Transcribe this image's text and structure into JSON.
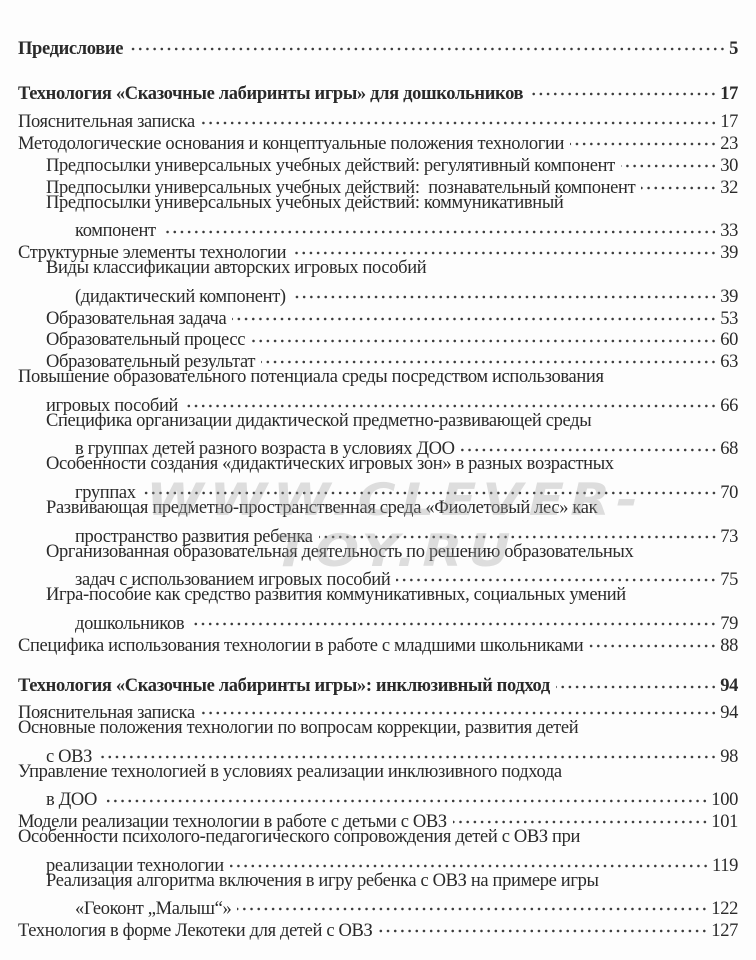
{
  "watermark": "WWW.CLEVER-TOY.RU",
  "preface": {
    "lines": [
      "Предисловие"
    ],
    "page": "5"
  },
  "sections": [
    {
      "heading": {
        "lines": [
          "Технология «Сказочные лабиринты игры» для дошкольников"
        ],
        "page": "17"
      },
      "entries": [
        {
          "level": 0,
          "lines": [
            "Пояснительная записка"
          ],
          "page": "17"
        },
        {
          "level": 0,
          "lines": [
            "Методологические основания и концептуальные положения технологии"
          ],
          "page": "23"
        },
        {
          "level": 1,
          "lines": [
            "Предпосылки универсальных учебных действий: регулятивный компонент"
          ],
          "page": "30"
        },
        {
          "level": 1,
          "lines": [
            "Предпосылки универсальных учебных действий:  познавательный компонент"
          ],
          "page": "32"
        },
        {
          "level": 1,
          "lines": [
            "Предпосылки универсальных учебных действий: коммуникативный",
            "компонент"
          ],
          "page": "33"
        },
        {
          "level": 0,
          "lines": [
            "Структурные элементы технологии"
          ],
          "page": "39"
        },
        {
          "level": 1,
          "lines": [
            "Виды классификации авторских игровых пособий",
            "(дидактический компонент)"
          ],
          "page": "39"
        },
        {
          "level": 1,
          "lines": [
            "Образовательная задача"
          ],
          "page": "53"
        },
        {
          "level": 1,
          "lines": [
            "Образовательный процесс"
          ],
          "page": "60"
        },
        {
          "level": 1,
          "lines": [
            "Образовательный результат"
          ],
          "page": "63"
        },
        {
          "level": 0,
          "lines": [
            "Повышение образовательного потенциала среды посредством использования",
            "игровых пособий"
          ],
          "page": "66"
        },
        {
          "level": 1,
          "lines": [
            "Специфика организации дидактической предметно-развивающей среды",
            "в группах детей разного возраста в условиях ДОО"
          ],
          "page": "68"
        },
        {
          "level": 1,
          "lines": [
            "Особенности создания «дидактических игровых зон» в разных возрастных",
            "группах"
          ],
          "page": "70"
        },
        {
          "level": 1,
          "lines": [
            "Развивающая предметно-пространственная среда «Фиолетовый лес» как",
            "пространство развития ребенка"
          ],
          "page": "73"
        },
        {
          "level": 1,
          "lines": [
            "Организованная образовательная деятельность по решению образовательных",
            "задач с использованием игровых пособий"
          ],
          "page": "75"
        },
        {
          "level": 1,
          "lines": [
            "Игра-пособие как средство развития коммуникативных, социальных умений",
            "дошкольников"
          ],
          "page": "79"
        },
        {
          "level": 0,
          "lines": [
            "Специфика использования технологии в работе с младшими школьниками"
          ],
          "page": "88"
        }
      ]
    },
    {
      "heading": {
        "lines": [
          "Технология «Сказочные лабиринты игры»: инклюзивный подход"
        ],
        "page": "94"
      },
      "entries": [
        {
          "level": 0,
          "lines": [
            "Пояснительная записка"
          ],
          "page": "94"
        },
        {
          "level": 0,
          "lines": [
            "Основные положения технологии по вопросам коррекции, развития детей",
            "с ОВЗ"
          ],
          "page": "98"
        },
        {
          "level": 0,
          "lines": [
            "Управление технологией в условиях реализации инклюзивного подхода",
            "в ДОО"
          ],
          "page": "100"
        },
        {
          "level": 0,
          "lines": [
            "Модели реализации технологии в работе с детьми с ОВЗ"
          ],
          "page": "101"
        },
        {
          "level": 0,
          "lines": [
            "Особенности психолого-педагогического сопровождения детей с ОВЗ при",
            "реализации технологии"
          ],
          "page": "119"
        },
        {
          "level": 1,
          "lines": [
            "Реализация алгоритма включения в игру ребенка с ОВЗ на примере игры",
            "«Геоконт „Малыш“»"
          ],
          "page": "122"
        },
        {
          "level": 0,
          "lines": [
            "Технология в форме Лекотеки для детей с ОВЗ"
          ],
          "page": "127"
        }
      ]
    }
  ]
}
